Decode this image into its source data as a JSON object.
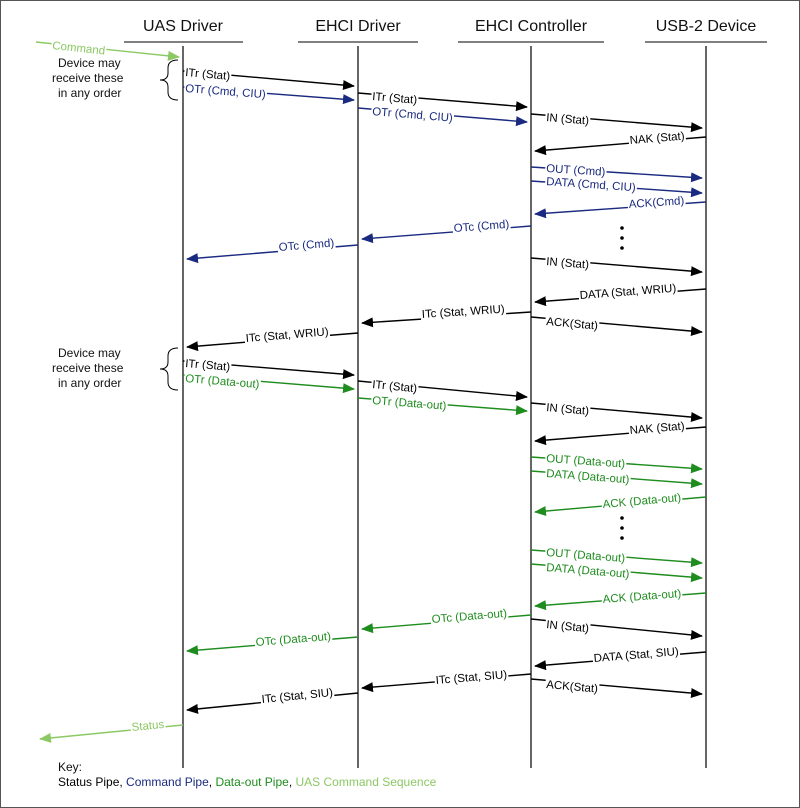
{
  "colors": {
    "status": "#000000",
    "command": "#1a2a80",
    "dataout": "#1e8c1e",
    "uas": "#8cc864"
  },
  "lanes": [
    {
      "id": "uas",
      "label": "UAS Driver"
    },
    {
      "id": "ehci_drv",
      "label": "EHCI Driver"
    },
    {
      "id": "ehci_ctl",
      "label": "EHCI Controller"
    },
    {
      "id": "dev",
      "label": "USB-2 Device"
    }
  ],
  "notes": [
    {
      "lines": [
        "Device may",
        "receive these",
        "in any order"
      ]
    },
    {
      "lines": [
        "Device may",
        "receive these",
        "in any order"
      ]
    }
  ],
  "messages": [
    {
      "label": "Command",
      "color": "uas"
    },
    {
      "label": "ITr (Stat)",
      "color": "status"
    },
    {
      "label": "OTr (Cmd, CIU)",
      "color": "command"
    },
    {
      "label": "ITr (Stat)",
      "color": "status"
    },
    {
      "label": "OTr (Cmd, CIU)",
      "color": "command"
    },
    {
      "label": "IN (Stat)",
      "color": "status"
    },
    {
      "label": "NAK (Stat)",
      "color": "status"
    },
    {
      "label": "OUT (Cmd)",
      "color": "command"
    },
    {
      "label": "DATA (Cmd, CIU)",
      "color": "command"
    },
    {
      "label": "ACK(Cmd)",
      "color": "command"
    },
    {
      "label": "OTc (Cmd)",
      "color": "command"
    },
    {
      "label": "OTc (Cmd)",
      "color": "command"
    },
    {
      "label": "IN (Stat)",
      "color": "status"
    },
    {
      "label": "DATA (Stat, WRIU)",
      "color": "status"
    },
    {
      "label": "ITc (Stat, WRIU)",
      "color": "status"
    },
    {
      "label": "ACK(Stat)",
      "color": "status"
    },
    {
      "label": "ITc (Stat, WRIU)",
      "color": "status"
    },
    {
      "label": "ITr (Stat)",
      "color": "status"
    },
    {
      "label": "OTr (Data-out)",
      "color": "dataout"
    },
    {
      "label": "ITr (Stat)",
      "color": "status"
    },
    {
      "label": "OTr (Data-out)",
      "color": "dataout"
    },
    {
      "label": "IN (Stat)",
      "color": "status"
    },
    {
      "label": "NAK (Stat)",
      "color": "status"
    },
    {
      "label": "OUT (Data-out)",
      "color": "dataout"
    },
    {
      "label": "DATA (Data-out)",
      "color": "dataout"
    },
    {
      "label": "ACK (Data-out)",
      "color": "dataout"
    },
    {
      "label": "OUT (Data-out)",
      "color": "dataout"
    },
    {
      "label": "DATA (Data-out)",
      "color": "dataout"
    },
    {
      "label": "ACK (Data-out)",
      "color": "dataout"
    },
    {
      "label": "OTc (Data-out)",
      "color": "dataout"
    },
    {
      "label": "IN (Stat)",
      "color": "status"
    },
    {
      "label": "OTc (Data-out)",
      "color": "dataout"
    },
    {
      "label": "DATA (Stat, SIU)",
      "color": "status"
    },
    {
      "label": "ITc (Stat, SIU)",
      "color": "status"
    },
    {
      "label": "ACK(Stat)",
      "color": "status"
    },
    {
      "label": "ITc (Stat, SIU)",
      "color": "status"
    },
    {
      "label": "Status",
      "color": "uas"
    }
  ],
  "key": {
    "title": "Key:",
    "items": [
      {
        "label": "Status Pipe",
        "color": "status",
        "sep": ", "
      },
      {
        "label": "Command Pipe",
        "color": "command",
        "sep": ", "
      },
      {
        "label": "Data-out Pipe",
        "color": "dataout",
        "sep": ", "
      },
      {
        "label": "UAS Command Sequence",
        "color": "uas",
        "sep": ""
      }
    ]
  }
}
